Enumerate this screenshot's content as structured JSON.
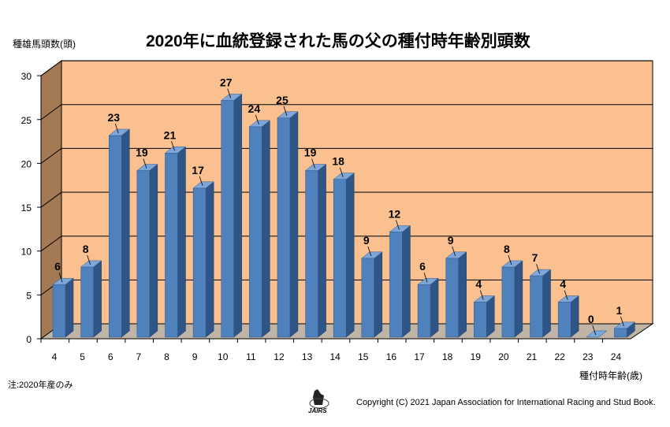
{
  "chart_data": {
    "type": "bar",
    "title": "2020年に血統登録された馬の父の種付時年齢別頭数",
    "ylabel": "種雄馬頭数(頭)",
    "xlabel": "種付時年齢(歳)",
    "categories": [
      "4",
      "5",
      "6",
      "7",
      "8",
      "9",
      "10",
      "11",
      "12",
      "13",
      "14",
      "15",
      "16",
      "17",
      "18",
      "19",
      "20",
      "21",
      "22",
      "23",
      "24"
    ],
    "values": [
      6,
      8,
      23,
      19,
      21,
      17,
      27,
      24,
      25,
      19,
      18,
      9,
      12,
      6,
      9,
      4,
      8,
      7,
      4,
      0,
      1
    ],
    "ylim": [
      0,
      30
    ],
    "yticks": [
      0,
      5,
      10,
      15,
      20,
      25,
      30
    ],
    "grid": true,
    "three_d": true,
    "colors": {
      "bar": "#4f81bd",
      "bar_side": "#2f5587",
      "wall": "#fac090",
      "left_wall": "#a47a55",
      "floor": "#bfb4a6"
    }
  },
  "note": "注:2020年産のみ",
  "copyright": "Copyright (C) 2021  Japan Association for International Racing and Stud Book.",
  "logo_text": "JAIRS"
}
